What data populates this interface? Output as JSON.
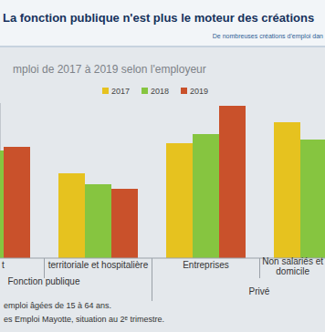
{
  "chart_data": {
    "type": "bar",
    "title": "La fonction publique n'est plus le moteur des créations",
    "subtitle": "mploi de 2017 à 2019 selon l'employeur",
    "annotations": [
      "De nombreuses créations d'emploi dan",
      "emploi âgées de 15 à 64 ans.",
      "es Emploi Mayotte, situation au 2ᵉ trimestre."
    ],
    "categories": [
      "t",
      "territoriale et hospitalière",
      "Entreprises",
      "Non salariés et\ndomicile"
    ],
    "x_groups": [
      {
        "label": "Fonction publique",
        "categories": [
          "t",
          "territoriale et hospitalière"
        ]
      },
      {
        "label": "Privé",
        "categories": [
          "Entreprises",
          "Non salariés et\ndomicile"
        ]
      }
    ],
    "series": [
      {
        "name": "2017",
        "color": "#e6c21f",
        "values": [
          null,
          93,
          126,
          149
        ]
      },
      {
        "name": "2018",
        "color": "#86c540",
        "values": [
          118,
          81,
          136,
          130
        ]
      },
      {
        "name": "2019",
        "color": "#c9512b",
        "values": [
          122,
          76,
          167,
          null
        ]
      }
    ],
    "ylim": [
      0,
      170
    ],
    "legend": "top",
    "tick_labels": "x"
  }
}
